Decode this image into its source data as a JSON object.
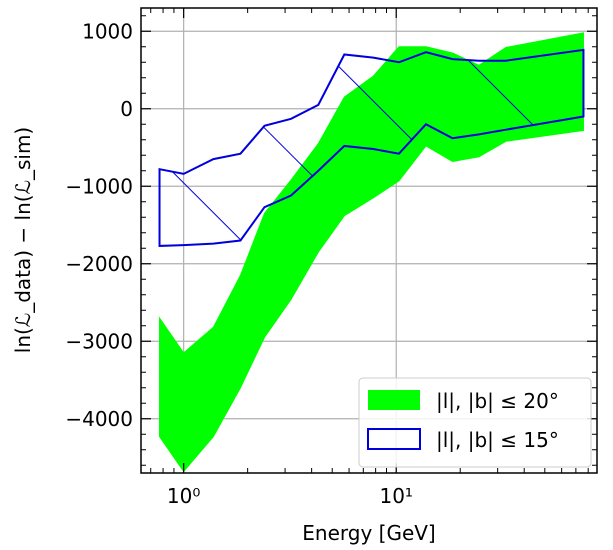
{
  "chart_data": {
    "type": "area",
    "xlabel": "Energy [GeV]",
    "ylabel": "ln(ℒ_data) − ln(ℒ_sim)",
    "x_scale": "log",
    "xlim": [
      0.63,
      88
    ],
    "ylim": [
      -4700,
      1300
    ],
    "grid": true,
    "legend_position": "lower right",
    "x_ticks": [
      {
        "value": 1,
        "label": "10⁰"
      },
      {
        "value": 10,
        "label": "10¹"
      }
    ],
    "y_ticks": [
      {
        "value": 1000,
        "label": "1000"
      },
      {
        "value": 0,
        "label": "0"
      },
      {
        "value": -1000,
        "label": "−1000"
      },
      {
        "value": -2000,
        "label": "−2000"
      },
      {
        "value": -3000,
        "label": "−3000"
      },
      {
        "value": -4000,
        "label": "−4000"
      }
    ],
    "series": [
      {
        "name": "|l|, |b| ≤ 20°",
        "style": "filled",
        "color": "#00ff00",
        "x": [
          0.77,
          1.0,
          1.38,
          1.85,
          2.4,
          3.2,
          4.3,
          5.7,
          7.8,
          10.3,
          13.8,
          18.4,
          24.5,
          32.8,
          76.0
        ],
        "upper": [
          -2700,
          -3150,
          -2820,
          -2150,
          -1350,
          -920,
          -450,
          150,
          420,
          800,
          800,
          720,
          560,
          790,
          980
        ],
        "lower": [
          -4230,
          -4680,
          -4230,
          -3600,
          -2950,
          -2460,
          -1850,
          -1380,
          -1150,
          -930,
          -480,
          -680,
          -620,
          -420,
          -280
        ]
      },
      {
        "name": "|l|, |b| ≤ 15°",
        "style": "hatched",
        "color": "#0000dd",
        "x": [
          0.77,
          1.0,
          1.38,
          1.85,
          2.4,
          3.2,
          4.3,
          5.7,
          7.8,
          10.3,
          13.8,
          18.4,
          24.5,
          32.8,
          76.0
        ],
        "upper": [
          -780,
          -840,
          -650,
          -580,
          -220,
          -130,
          50,
          700,
          660,
          600,
          730,
          640,
          620,
          620,
          760
        ],
        "lower": [
          -1770,
          -1760,
          -1740,
          -1700,
          -1270,
          -1120,
          -800,
          -480,
          -520,
          -580,
          -200,
          -380,
          -330,
          -270,
          -100
        ]
      }
    ]
  }
}
